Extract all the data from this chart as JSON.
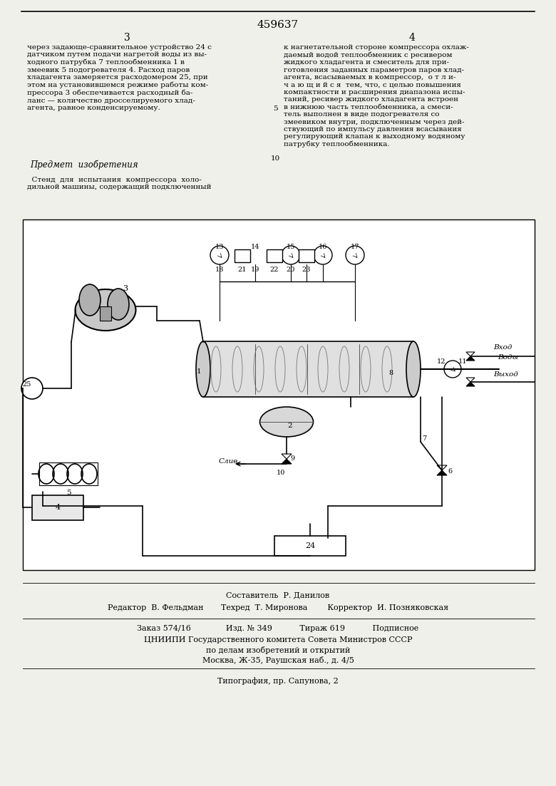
{
  "page_bg": "#f0f0eb",
  "patent_number": "459637",
  "col_left_num": "3",
  "col_right_num": "4",
  "text_col_left": "через задающе-сравнительное устройство 24 с\nдатчиком путем подачи нагретой воды из вы-\nходного патрубка 7 теплообменника 1 в\nзмеевик 5 подогревателя 4. Расход паров\nхладагента замеряется расходомером 25, при\nэтом на установившемся режиме работы ком-\nпрессора 3 обеспечивается расходный ба-\nланс — количество дросселируемого хлад-\nагента, равное конденсируемому.",
  "subject_title": "Предмет  изобретения",
  "subject_text": "  Стенд  для  испытания  компрессора  холо-\nдильной машины, содержащий подключенный",
  "line_number_5": "5",
  "line_number_10": "10",
  "text_col_right": "к нагнетательной стороне компрессора охлаж-\nдаемый водой теплообменник с ресивером\nжидкого хладагента и смеситель для при-\nготовления заданных параметров паров хлад-\nагента, всасываемых в компрессор,  о т л и-\nч а ю щ и й с я  тем, что, с целью повышения\nкомпактности и расширения диапазона испы-\nтаний, ресивер жидкого хладагента встроен\nв нижнюю часть теплообменника, а смеси-\nтель выполнен в виде подогревателя со\nзмеевиком внутри, подключенным через дей-\nствующий по импульсу давления всасывания\nрегулирующий клапан к выходному водяному\nпатрубку теплообменника.",
  "editor_line": "Редактор  В. Фельдман       Техред  Т. Миронова        Корректор  И. Позняковская",
  "order_line": "Заказ 574/16              Изд. № 349           Тираж 619           Подписное",
  "org_line1": "ЦНИИПИ Государственного комитета Совета Министров СССР",
  "org_line2": "по делам изобретений и открытий",
  "org_line3": "Москва, Ж-35, Раушская наб., д. 4/5",
  "print_line": "Типография, пр. Сапунова, 2",
  "sostavitel": "Составитель  Р. Данилов"
}
